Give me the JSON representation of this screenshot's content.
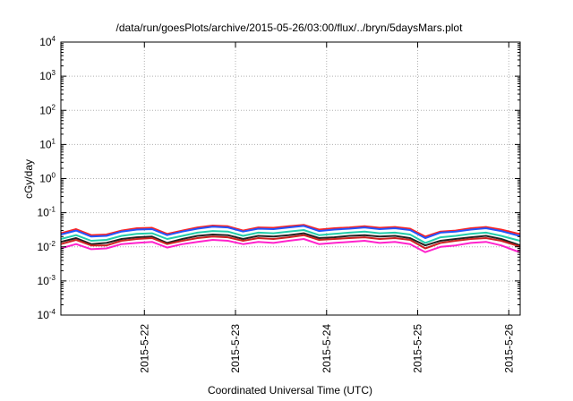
{
  "chart_data": {
    "type": "line",
    "title": "/data/run/goesPlots/archive/2015-05-26/03:00/flux/../bryn/5daysMars.plot",
    "xlabel": "Coordinated Universal Time (UTC)",
    "ylabel": "cGy/day",
    "yscale": "log",
    "ylim": [
      0.0001,
      10000
    ],
    "xlim": [
      "2015-05-21T02:00",
      "2015-05-26T03:00"
    ],
    "grid": true,
    "y_ticks": [
      {
        "value": 0.0001,
        "base": "10",
        "exp": "-4"
      },
      {
        "value": 0.001,
        "base": "10",
        "exp": "-3"
      },
      {
        "value": 0.01,
        "base": "10",
        "exp": "-2"
      },
      {
        "value": 0.1,
        "base": "10",
        "exp": "-1"
      },
      {
        "value": 1,
        "base": "10",
        "exp": "0"
      },
      {
        "value": 10,
        "base": "10",
        "exp": "1"
      },
      {
        "value": 100,
        "base": "10",
        "exp": "2"
      },
      {
        "value": 1000,
        "base": "10",
        "exp": "3"
      },
      {
        "value": 10000,
        "base": "10",
        "exp": "4"
      }
    ],
    "x_ticks": [
      {
        "value": "2015-05-22T00:00",
        "label": "2015-5-22"
      },
      {
        "value": "2015-05-23T00:00",
        "label": "2015-5-23"
      },
      {
        "value": "2015-05-24T00:00",
        "label": "2015-5-24"
      },
      {
        "value": "2015-05-25T00:00",
        "label": "2015-5-25"
      },
      {
        "value": "2015-05-26T00:00",
        "label": "2015-5-26"
      }
    ],
    "x": [
      "2015-05-21T02:00",
      "2015-05-21T06:00",
      "2015-05-21T10:00",
      "2015-05-21T14:00",
      "2015-05-21T18:00",
      "2015-05-21T22:00",
      "2015-05-22T02:00",
      "2015-05-22T06:00",
      "2015-05-22T10:00",
      "2015-05-22T14:00",
      "2015-05-22T18:00",
      "2015-05-22T22:00",
      "2015-05-23T02:00",
      "2015-05-23T06:00",
      "2015-05-23T10:00",
      "2015-05-23T14:00",
      "2015-05-23T18:00",
      "2015-05-23T22:00",
      "2015-05-24T02:00",
      "2015-05-24T06:00",
      "2015-05-24T10:00",
      "2015-05-24T14:00",
      "2015-05-24T18:00",
      "2015-05-24T22:00",
      "2015-05-25T02:00",
      "2015-05-25T06:00",
      "2015-05-25T10:00",
      "2015-05-25T14:00",
      "2015-05-25T18:00",
      "2015-05-25T22:00",
      "2015-05-26T02:00",
      "2015-05-26T03:00"
    ],
    "series": [
      {
        "color": "#ff2222",
        "values": [
          0.025,
          0.033,
          0.022,
          0.023,
          0.03,
          0.035,
          0.036,
          0.024,
          0.03,
          0.037,
          0.042,
          0.04,
          0.03,
          0.037,
          0.036,
          0.04,
          0.044,
          0.032,
          0.035,
          0.037,
          0.04,
          0.036,
          0.038,
          0.034,
          0.02,
          0.028,
          0.03,
          0.035,
          0.038,
          0.032,
          0.025,
          0.024
        ]
      },
      {
        "color": "#2255ff",
        "values": [
          0.023,
          0.03,
          0.02,
          0.021,
          0.028,
          0.032,
          0.033,
          0.022,
          0.028,
          0.034,
          0.039,
          0.037,
          0.028,
          0.034,
          0.033,
          0.037,
          0.041,
          0.029,
          0.032,
          0.034,
          0.037,
          0.033,
          0.035,
          0.031,
          0.018,
          0.026,
          0.028,
          0.032,
          0.035,
          0.029,
          0.022,
          0.021
        ]
      },
      {
        "color": "#22ccaa",
        "values": [
          0.017,
          0.022,
          0.015,
          0.016,
          0.021,
          0.024,
          0.025,
          0.017,
          0.021,
          0.026,
          0.029,
          0.028,
          0.021,
          0.026,
          0.025,
          0.028,
          0.031,
          0.022,
          0.024,
          0.026,
          0.028,
          0.025,
          0.026,
          0.023,
          0.013,
          0.019,
          0.021,
          0.024,
          0.026,
          0.021,
          0.016,
          0.015
        ]
      },
      {
        "color": "#222222",
        "values": [
          0.014,
          0.018,
          0.012,
          0.013,
          0.017,
          0.019,
          0.02,
          0.013,
          0.017,
          0.021,
          0.023,
          0.022,
          0.017,
          0.021,
          0.02,
          0.022,
          0.025,
          0.018,
          0.019,
          0.021,
          0.022,
          0.02,
          0.021,
          0.018,
          0.011,
          0.015,
          0.017,
          0.019,
          0.021,
          0.017,
          0.012,
          0.011
        ]
      },
      {
        "color": "#cc2222",
        "values": [
          0.012,
          0.016,
          0.011,
          0.011,
          0.015,
          0.017,
          0.018,
          0.012,
          0.015,
          0.018,
          0.02,
          0.019,
          0.015,
          0.018,
          0.017,
          0.019,
          0.022,
          0.016,
          0.017,
          0.018,
          0.019,
          0.017,
          0.018,
          0.016,
          0.009,
          0.013,
          0.015,
          0.017,
          0.018,
          0.015,
          0.011,
          0.01
        ]
      },
      {
        "color": "#ff22cc",
        "values": [
          0.009,
          0.012,
          0.0085,
          0.009,
          0.012,
          0.013,
          0.014,
          0.0095,
          0.012,
          0.014,
          0.016,
          0.015,
          0.012,
          0.014,
          0.013,
          0.015,
          0.017,
          0.012,
          0.013,
          0.014,
          0.015,
          0.013,
          0.014,
          0.012,
          0.007,
          0.01,
          0.011,
          0.013,
          0.014,
          0.011,
          0.0075,
          0.007
        ]
      }
    ]
  }
}
